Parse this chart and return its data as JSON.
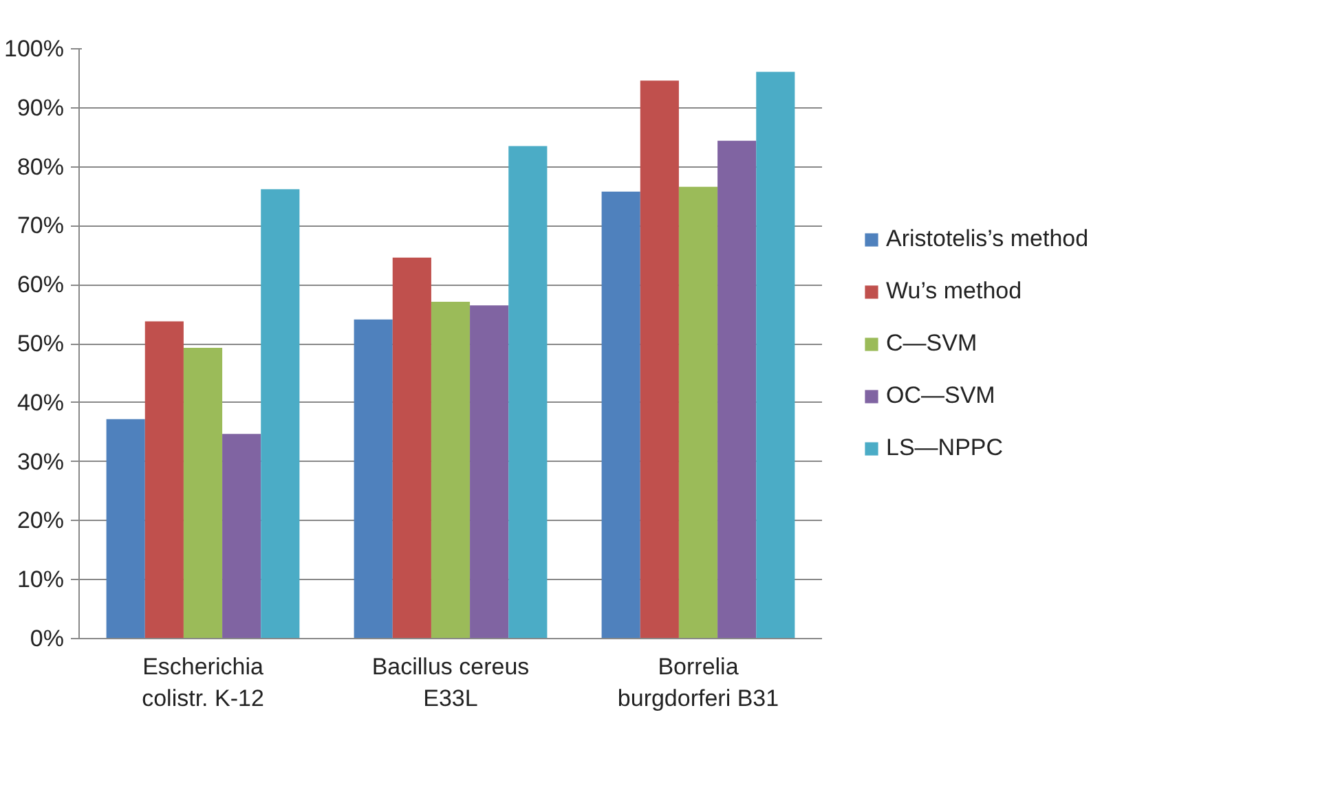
{
  "chart_data": {
    "type": "bar",
    "categories": [
      "Escherichia\ncolistr. K-12",
      "Bacillus cereus\nE33L",
      "Borrelia\nburgdorferi B31"
    ],
    "series": [
      {
        "name": "Aristotelis’s method",
        "color": "#4f81bd",
        "values": [
          37.2,
          54.1,
          75.8
        ]
      },
      {
        "name": "Wu’s method",
        "color": "#c0504d",
        "values": [
          53.8,
          64.6,
          94.6
        ]
      },
      {
        "name": "C—SVM",
        "color": "#9bbb59",
        "values": [
          49.3,
          57.1,
          76.6
        ]
      },
      {
        "name": "OC—SVM",
        "color": "#8064a2",
        "values": [
          34.7,
          56.5,
          84.4
        ]
      },
      {
        "name": "LS—NPPC",
        "color": "#4bacc6",
        "values": [
          76.2,
          83.5,
          96.1
        ]
      }
    ],
    "ylim": [
      0,
      100
    ],
    "yticks": [
      {
        "value": 0,
        "label": "0%"
      },
      {
        "value": 10,
        "label": "10%"
      },
      {
        "value": 20,
        "label": "20%"
      },
      {
        "value": 30,
        "label": "30%"
      },
      {
        "value": 40,
        "label": "40%"
      },
      {
        "value": 50,
        "label": "50%"
      },
      {
        "value": 60,
        "label": "60%"
      },
      {
        "value": 70,
        "label": "70%"
      },
      {
        "value": 80,
        "label": "80%"
      },
      {
        "value": 90,
        "label": "90%"
      },
      {
        "value": 100,
        "label": "100%"
      }
    ],
    "grid": "y",
    "legend": "right"
  }
}
